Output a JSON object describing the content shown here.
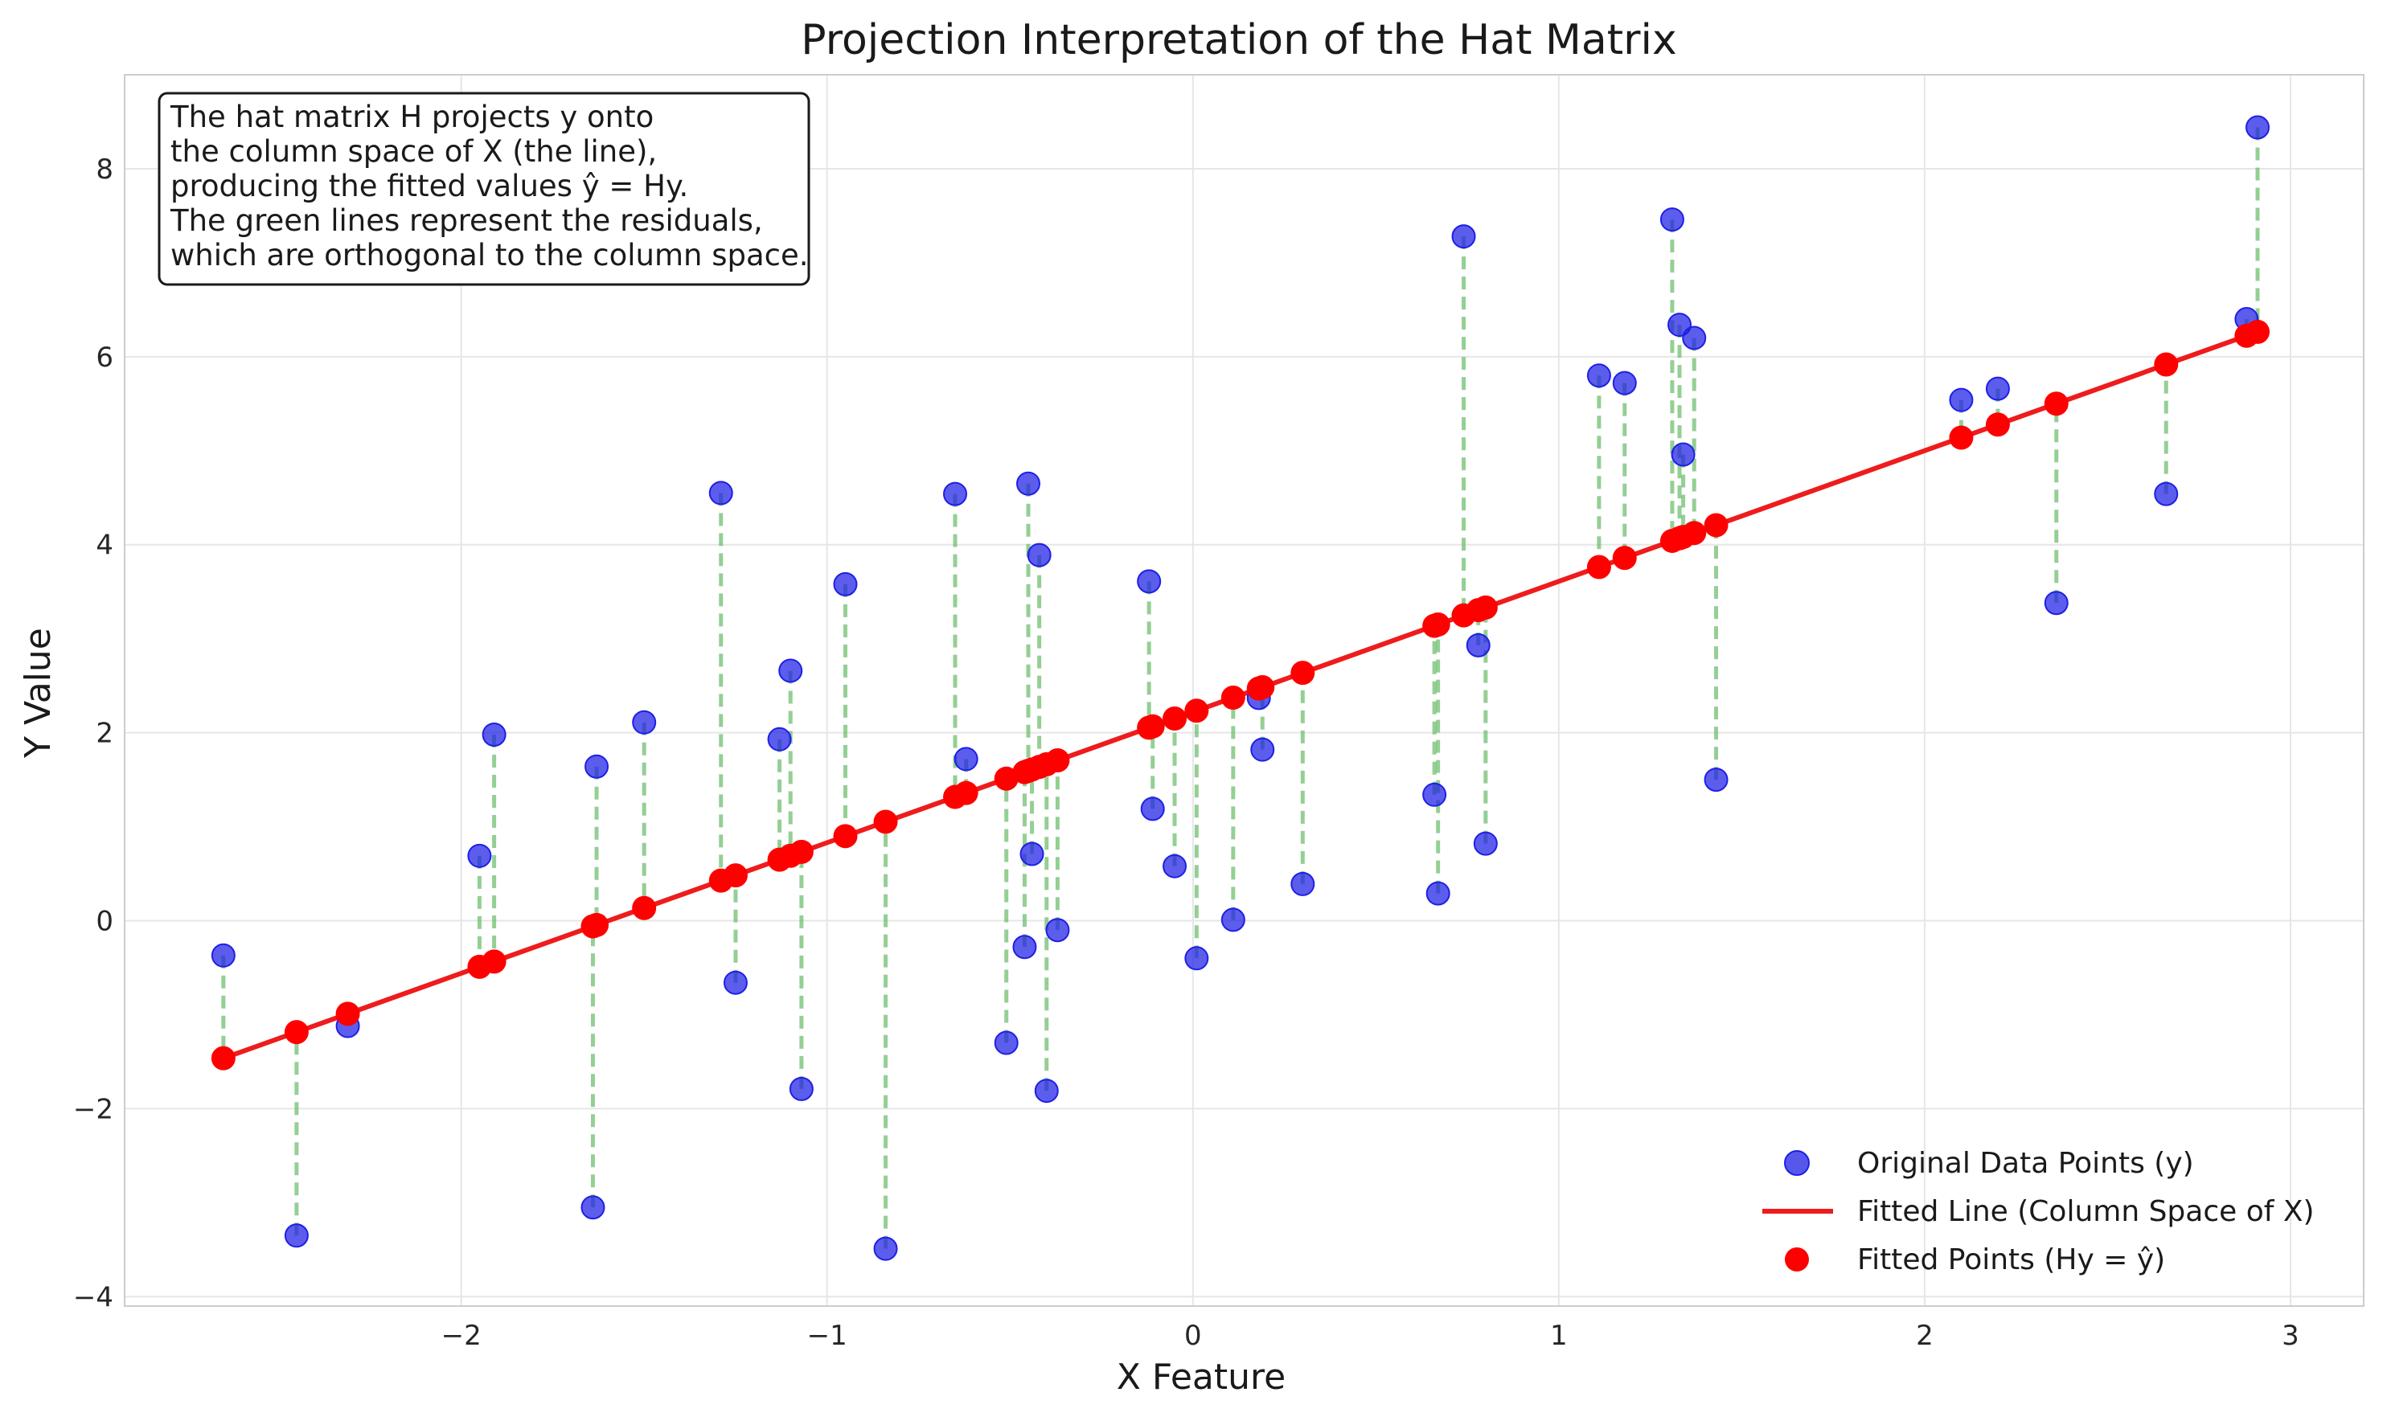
{
  "chart_data": {
    "type": "scatter",
    "title": "Projection Interpretation of the Hat Matrix",
    "xlabel": "X Feature",
    "ylabel": "Y Value",
    "xlim": [
      -2.92,
      3.2
    ],
    "ylim": [
      -4.1,
      9.0
    ],
    "xticks": [
      -2,
      -1,
      0,
      1,
      2,
      3
    ],
    "yticks": [
      -4,
      -2,
      0,
      2,
      4,
      6,
      8
    ],
    "xtick_labels": [
      "−2",
      "−1",
      "0",
      "1",
      "2",
      "3"
    ],
    "ytick_labels": [
      "−4",
      "−2",
      "0",
      "2",
      "4",
      "6",
      "8"
    ],
    "grid": true,
    "legend_position": "lower-right",
    "annotation": [
      "The hat matrix H projects y onto",
      "the column space of X (the line),",
      "producing the fitted values ŷ = Hy.",
      "The green lines represent the residuals,",
      "which are orthogonal to the column space."
    ],
    "fit": {
      "intercept": 2.22,
      "slope": 1.39
    },
    "series": [
      {
        "name": "Original Data Points (y)",
        "kind": "scatter",
        "color": "#1f1fe6",
        "points": [
          [
            -2.65,
            -0.37
          ],
          [
            -2.45,
            -3.35
          ],
          [
            -2.31,
            -1.12
          ],
          [
            -1.95,
            0.69
          ],
          [
            -1.91,
            1.98
          ],
          [
            -1.64,
            -3.05
          ],
          [
            -1.63,
            1.64
          ],
          [
            -1.5,
            2.11
          ],
          [
            -1.29,
            4.55
          ],
          [
            -1.25,
            -0.66
          ],
          [
            -1.13,
            1.93
          ],
          [
            -1.1,
            2.66
          ],
          [
            -1.07,
            -1.79
          ],
          [
            -0.95,
            3.58
          ],
          [
            -0.84,
            -3.49
          ],
          [
            -0.65,
            4.54
          ],
          [
            -0.62,
            1.72
          ],
          [
            -0.51,
            -1.3
          ],
          [
            -0.46,
            -0.28
          ],
          [
            -0.45,
            4.65
          ],
          [
            -0.44,
            0.71
          ],
          [
            -0.42,
            3.89
          ],
          [
            -0.4,
            -1.81
          ],
          [
            -0.37,
            -0.1
          ],
          [
            -0.12,
            3.61
          ],
          [
            -0.11,
            1.19
          ],
          [
            -0.05,
            0.58
          ],
          [
            0.01,
            -0.4
          ],
          [
            0.11,
            0.01
          ],
          [
            0.18,
            2.37
          ],
          [
            0.19,
            1.82
          ],
          [
            0.3,
            0.39
          ],
          [
            0.66,
            1.34
          ],
          [
            0.67,
            0.29
          ],
          [
            0.74,
            7.28
          ],
          [
            0.78,
            2.93
          ],
          [
            0.8,
            0.82
          ],
          [
            1.11,
            5.8
          ],
          [
            1.18,
            5.72
          ],
          [
            1.31,
            7.46
          ],
          [
            1.33,
            6.34
          ],
          [
            1.34,
            4.96
          ],
          [
            1.37,
            6.2
          ],
          [
            1.43,
            1.5
          ],
          [
            2.1,
            5.54
          ],
          [
            2.2,
            5.66
          ],
          [
            2.36,
            3.38
          ],
          [
            2.66,
            4.54
          ],
          [
            2.88,
            6.4
          ],
          [
            2.91,
            8.44
          ]
        ]
      },
      {
        "name": "Fitted Line (Column Space of X)",
        "kind": "line",
        "color": "#ee1c1c",
        "x_range": [
          -2.65,
          2.91
        ]
      },
      {
        "name": "Fitted Points (Hy = ŷ)",
        "kind": "scatter",
        "color": "#ff0000"
      },
      {
        "kind": "residuals",
        "color": "#66bb66"
      }
    ]
  }
}
